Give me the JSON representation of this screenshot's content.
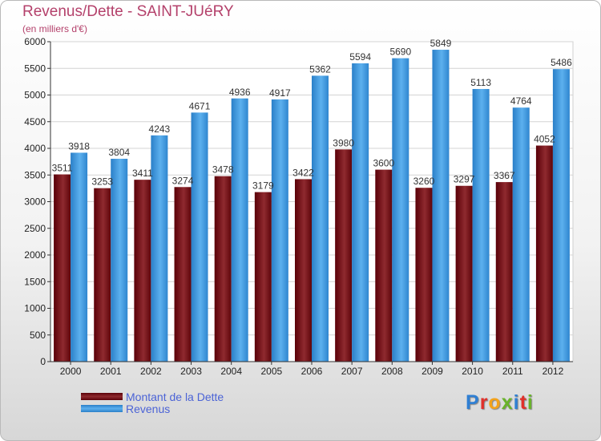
{
  "header": {
    "title": "Revenus/Dette - SAINT-JUéRY",
    "subtitle": "(en milliers d'€)"
  },
  "logo": {
    "text": "Proxiti"
  },
  "colors": {
    "dette": "#7a0c12",
    "revenus": "#3a96de"
  },
  "chart_data": {
    "type": "bar",
    "title": "Revenus/Dette - SAINT-JUéRY",
    "subtitle": "(en milliers d'€)",
    "categories": [
      "2000",
      "2001",
      "2002",
      "2003",
      "2004",
      "2005",
      "2006",
      "2007",
      "2008",
      "2009",
      "2010",
      "2011",
      "2012"
    ],
    "series": [
      {
        "name": "Montant de la Dette",
        "values": [
          3511,
          3253,
          3411,
          3274,
          3478,
          3179,
          3422,
          3980,
          3600,
          3260,
          3297,
          3367,
          4052
        ]
      },
      {
        "name": "Revenus",
        "values": [
          3918,
          3804,
          4243,
          4671,
          4936,
          4917,
          5362,
          5594,
          5690,
          5849,
          5113,
          4764,
          5486
        ]
      }
    ],
    "yticks": [
      0,
      500,
      1000,
      1500,
      2000,
      2500,
      3000,
      3500,
      4000,
      4500,
      5000,
      5500,
      6000
    ],
    "ylim": [
      0,
      6000
    ],
    "grid": true,
    "legend": "bottom-left"
  }
}
